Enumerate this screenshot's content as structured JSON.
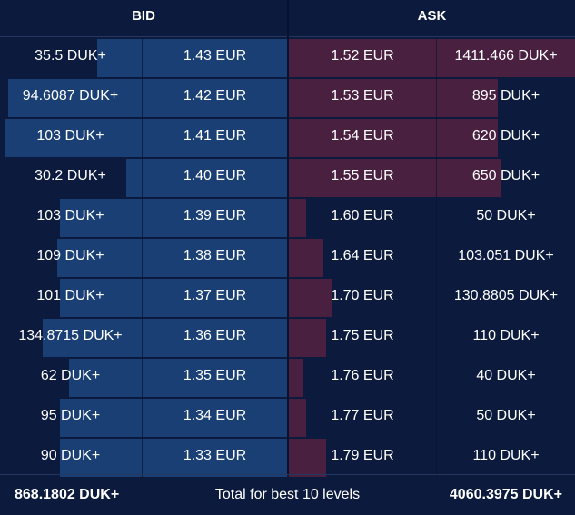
{
  "header": {
    "bid_label": "BID",
    "ask_label": "ASK"
  },
  "colors": {
    "background": "#0b1a3d",
    "bid_bar": "#1a3f74",
    "ask_bar": "#4a2040"
  },
  "rows": [
    {
      "bid_qty": "35.5 DUK+",
      "bid_price": "1.43 EUR",
      "bid_fill": 0.66,
      "ask_price": "1.52 EUR",
      "ask_qty": "1411.466 DUK+",
      "ask_fill": 1.0
    },
    {
      "bid_qty": "94.6087 DUK+",
      "bid_price": "1.42 EUR",
      "bid_fill": 0.97,
      "ask_price": "1.53 EUR",
      "ask_qty": "895 DUK+",
      "ask_fill": 0.73
    },
    {
      "bid_qty": "103 DUK+",
      "bid_price": "1.41 EUR",
      "bid_fill": 0.98,
      "ask_price": "1.54 EUR",
      "ask_qty": "620 DUK+",
      "ask_fill": 0.73
    },
    {
      "bid_qty": "30.2 DUK+",
      "bid_price": "1.40 EUR",
      "bid_fill": 0.56,
      "ask_price": "1.55 EUR",
      "ask_qty": "650 DUK+",
      "ask_fill": 0.74
    },
    {
      "bid_qty": "103 DUK+",
      "bid_price": "1.39 EUR",
      "bid_fill": 0.79,
      "ask_price": "1.60 EUR",
      "ask_qty": "50 DUK+",
      "ask_fill": 0.06
    },
    {
      "bid_qty": "109 DUK+",
      "bid_price": "1.38 EUR",
      "bid_fill": 0.8,
      "ask_price": "1.64 EUR",
      "ask_qty": "103.051 DUK+",
      "ask_fill": 0.12
    },
    {
      "bid_qty": "101 DUK+",
      "bid_price": "1.37 EUR",
      "bid_fill": 0.79,
      "ask_price": "1.70 EUR",
      "ask_qty": "130.8805 DUK+",
      "ask_fill": 0.15
    },
    {
      "bid_qty": "134.8715 DUK+",
      "bid_price": "1.36 EUR",
      "bid_fill": 0.85,
      "ask_price": "1.75 EUR",
      "ask_qty": "110 DUK+",
      "ask_fill": 0.13
    },
    {
      "bid_qty": "62 DUK+",
      "bid_price": "1.35 EUR",
      "bid_fill": 0.76,
      "ask_price": "1.76 EUR",
      "ask_qty": "40 DUK+",
      "ask_fill": 0.05
    },
    {
      "bid_qty": "95 DUK+",
      "bid_price": "1.34 EUR",
      "bid_fill": 0.79,
      "ask_price": "1.77 EUR",
      "ask_qty": "50 DUK+",
      "ask_fill": 0.06
    },
    {
      "bid_qty": "90 DUK+",
      "bid_price": "1.33 EUR",
      "bid_fill": 0.79,
      "ask_price": "1.79 EUR",
      "ask_qty": "110 DUK+",
      "ask_fill": 0.13
    }
  ],
  "footer": {
    "bid_total": "868.1802 DUK+",
    "label": "Total for best 10 levels",
    "ask_total": "4060.3975 DUK+"
  }
}
